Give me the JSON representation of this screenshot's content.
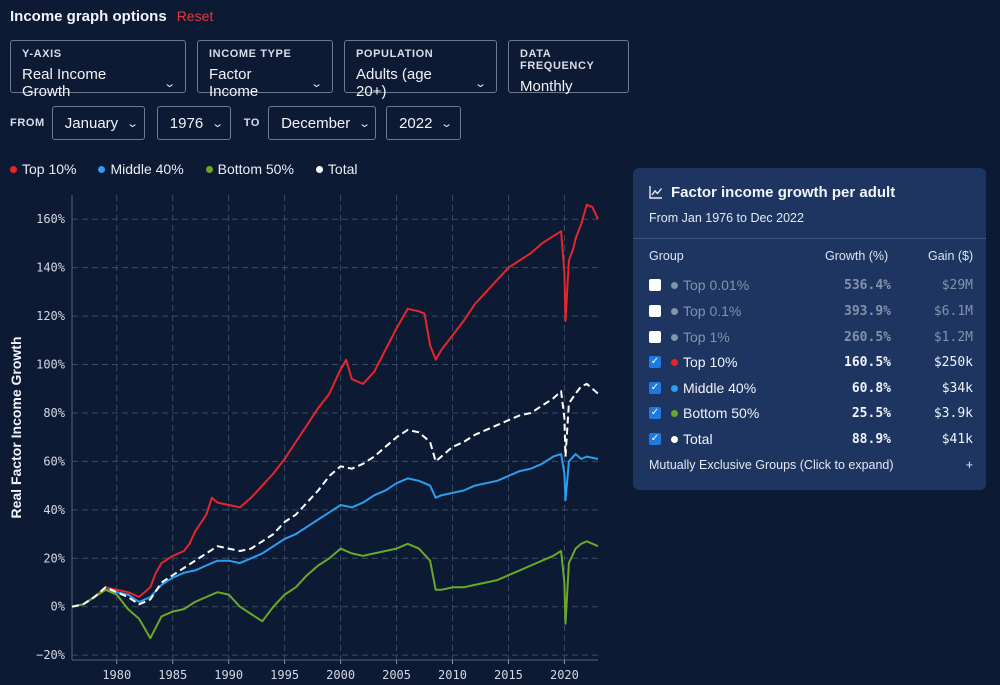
{
  "header": {
    "title": "Income graph options",
    "reset": "Reset"
  },
  "controls": [
    {
      "label": "Y-AXIS",
      "value": "Real Income Growth"
    },
    {
      "label": "INCOME TYPE",
      "value": "Factor Income"
    },
    {
      "label": "POPULATION",
      "value": "Adults (age 20+)"
    },
    {
      "label": "DATA FREQUENCY",
      "value": "Monthly"
    }
  ],
  "range": {
    "from_label": "FROM",
    "from_month": "January",
    "from_year": "1976",
    "to_label": "TO",
    "to_month": "December",
    "to_year": "2022"
  },
  "legend": [
    {
      "name": "Top 10%",
      "color": "#e5262b"
    },
    {
      "name": "Middle 40%",
      "color": "#2e9cf0"
    },
    {
      "name": "Bottom 50%",
      "color": "#6aa82a"
    },
    {
      "name": "Total",
      "color": "#ffffff"
    }
  ],
  "panel": {
    "title": "Factor income growth per adult",
    "subtitle": "From Jan 1976 to Dec 2022",
    "col_group": "Group",
    "col_growth": "Growth (%)",
    "col_gain": "Gain ($)",
    "rows": [
      {
        "name": "Top 0.01%",
        "growth": "536.4%",
        "gain": "$29M",
        "checked": false,
        "color": "#8492ab"
      },
      {
        "name": "Top 0.1%",
        "growth": "393.9%",
        "gain": "$6.1M",
        "checked": false,
        "color": "#8492ab"
      },
      {
        "name": "Top 1%",
        "growth": "260.5%",
        "gain": "$1.2M",
        "checked": false,
        "color": "#8492ab"
      },
      {
        "name": "Top 10%",
        "growth": "160.5%",
        "gain": "$250k",
        "checked": true,
        "color": "#e5262b"
      },
      {
        "name": "Middle 40%",
        "growth": "60.8%",
        "gain": "$34k",
        "checked": true,
        "color": "#2e9cf0"
      },
      {
        "name": "Bottom 50%",
        "growth": "25.5%",
        "gain": "$3.9k",
        "checked": true,
        "color": "#6aa82a"
      },
      {
        "name": "Total",
        "growth": "88.9%",
        "gain": "$41k",
        "checked": true,
        "color": "#ffffff"
      }
    ],
    "footer": "Mutually Exclusive Groups (Click to expand)",
    "footer_icon": "+"
  },
  "chart_data": {
    "type": "line",
    "ylabel": "Real Factor Income Growth",
    "xlim": [
      1976,
      2023
    ],
    "ylim": [
      -22,
      170
    ],
    "x_ticks": [
      1980,
      1985,
      1990,
      1995,
      2000,
      2005,
      2010,
      2015,
      2020
    ],
    "y_ticks": [
      -20,
      0,
      20,
      40,
      60,
      80,
      100,
      120,
      140,
      160
    ],
    "y_tick_labels": [
      "−20%",
      "0%",
      "20%",
      "40%",
      "60%",
      "80%",
      "100%",
      "120%",
      "140%",
      "160%"
    ],
    "grid": true,
    "series": [
      {
        "name": "Top 10%",
        "color": "#e5262b",
        "dashed": false,
        "points": [
          [
            1976,
            0
          ],
          [
            1977,
            1
          ],
          [
            1978,
            4
          ],
          [
            1979,
            8
          ],
          [
            1980,
            7
          ],
          [
            1981,
            6
          ],
          [
            1982,
            4
          ],
          [
            1983,
            8
          ],
          [
            1983.5,
            14
          ],
          [
            1984,
            18
          ],
          [
            1985,
            21
          ],
          [
            1986,
            23
          ],
          [
            1986.5,
            26
          ],
          [
            1987,
            31
          ],
          [
            1988,
            38
          ],
          [
            1988.5,
            45
          ],
          [
            1989,
            43
          ],
          [
            1990,
            42
          ],
          [
            1991,
            41
          ],
          [
            1992,
            45
          ],
          [
            1993,
            50
          ],
          [
            1994,
            55
          ],
          [
            1995,
            61
          ],
          [
            1996,
            68
          ],
          [
            1997,
            75
          ],
          [
            1998,
            82
          ],
          [
            1999,
            88
          ],
          [
            2000,
            98
          ],
          [
            2000.5,
            102
          ],
          [
            2001,
            94
          ],
          [
            2002,
            92
          ],
          [
            2003,
            97
          ],
          [
            2004,
            106
          ],
          [
            2005,
            115
          ],
          [
            2006,
            123
          ],
          [
            2007,
            122
          ],
          [
            2007.5,
            121
          ],
          [
            2008,
            108
          ],
          [
            2008.5,
            102
          ],
          [
            2009,
            106
          ],
          [
            2010,
            112
          ],
          [
            2011,
            118
          ],
          [
            2012,
            125
          ],
          [
            2013,
            130
          ],
          [
            2014,
            135
          ],
          [
            2015,
            140
          ],
          [
            2016,
            143
          ],
          [
            2017,
            146
          ],
          [
            2018,
            150
          ],
          [
            2019,
            153
          ],
          [
            2019.7,
            155
          ],
          [
            2020,
            138
          ],
          [
            2020.1,
            118
          ],
          [
            2020.4,
            143
          ],
          [
            2020.8,
            148
          ],
          [
            2021,
            152
          ],
          [
            2021.5,
            158
          ],
          [
            2022,
            166
          ],
          [
            2022.5,
            165
          ],
          [
            2023,
            160
          ]
        ]
      },
      {
        "name": "Middle 40%",
        "color": "#2e9cf0",
        "dashed": false,
        "points": [
          [
            1976,
            0
          ],
          [
            1977,
            1
          ],
          [
            1978,
            4
          ],
          [
            1979,
            7
          ],
          [
            1980,
            6
          ],
          [
            1981,
            5
          ],
          [
            1982,
            2
          ],
          [
            1983,
            4
          ],
          [
            1984,
            9
          ],
          [
            1985,
            12
          ],
          [
            1986,
            14
          ],
          [
            1987,
            15
          ],
          [
            1988,
            17
          ],
          [
            1989,
            19
          ],
          [
            1990,
            19
          ],
          [
            1991,
            18
          ],
          [
            1992,
            20
          ],
          [
            1993,
            22
          ],
          [
            1994,
            25
          ],
          [
            1995,
            28
          ],
          [
            1996,
            30
          ],
          [
            1997,
            33
          ],
          [
            1998,
            36
          ],
          [
            1999,
            39
          ],
          [
            2000,
            42
          ],
          [
            2001,
            41
          ],
          [
            2002,
            43
          ],
          [
            2003,
            46
          ],
          [
            2004,
            48
          ],
          [
            2005,
            51
          ],
          [
            2006,
            53
          ],
          [
            2007,
            52
          ],
          [
            2008,
            50
          ],
          [
            2008.5,
            45
          ],
          [
            2009,
            46
          ],
          [
            2010,
            47
          ],
          [
            2011,
            48
          ],
          [
            2012,
            50
          ],
          [
            2013,
            51
          ],
          [
            2014,
            52
          ],
          [
            2015,
            54
          ],
          [
            2016,
            56
          ],
          [
            2017,
            57
          ],
          [
            2018,
            59
          ],
          [
            2019,
            62
          ],
          [
            2019.7,
            63
          ],
          [
            2020,
            55
          ],
          [
            2020.1,
            44
          ],
          [
            2020.4,
            60
          ],
          [
            2021,
            63
          ],
          [
            2021.5,
            61
          ],
          [
            2022,
            62
          ],
          [
            2023,
            61
          ]
        ]
      },
      {
        "name": "Bottom 50%",
        "color": "#6aa82a",
        "dashed": false,
        "points": [
          [
            1976,
            0
          ],
          [
            1977,
            1
          ],
          [
            1978,
            4
          ],
          [
            1979,
            7
          ],
          [
            1980,
            5
          ],
          [
            1981,
            -1
          ],
          [
            1982,
            -5
          ],
          [
            1983,
            -13
          ],
          [
            1984,
            -4
          ],
          [
            1985,
            -2
          ],
          [
            1986,
            -1
          ],
          [
            1987,
            2
          ],
          [
            1988,
            4
          ],
          [
            1989,
            6
          ],
          [
            1990,
            5
          ],
          [
            1991,
            0
          ],
          [
            1992,
            -3
          ],
          [
            1993,
            -6
          ],
          [
            1994,
            0
          ],
          [
            1995,
            5
          ],
          [
            1996,
            8
          ],
          [
            1997,
            13
          ],
          [
            1998,
            17
          ],
          [
            1999,
            20
          ],
          [
            2000,
            24
          ],
          [
            2001,
            22
          ],
          [
            2002,
            21
          ],
          [
            2003,
            22
          ],
          [
            2004,
            23
          ],
          [
            2005,
            24
          ],
          [
            2006,
            26
          ],
          [
            2007,
            24
          ],
          [
            2008,
            19
          ],
          [
            2008.5,
            7
          ],
          [
            2009,
            7
          ],
          [
            2010,
            8
          ],
          [
            2011,
            8
          ],
          [
            2012,
            9
          ],
          [
            2013,
            10
          ],
          [
            2014,
            11
          ],
          [
            2015,
            13
          ],
          [
            2016,
            15
          ],
          [
            2017,
            17
          ],
          [
            2018,
            19
          ],
          [
            2019,
            21
          ],
          [
            2019.7,
            23
          ],
          [
            2020,
            10
          ],
          [
            2020.1,
            -7
          ],
          [
            2020.4,
            18
          ],
          [
            2021,
            24
          ],
          [
            2021.5,
            26
          ],
          [
            2022,
            27
          ],
          [
            2023,
            25
          ]
        ]
      },
      {
        "name": "Total",
        "color": "#ffffff",
        "dashed": true,
        "points": [
          [
            1976,
            0
          ],
          [
            1977,
            1
          ],
          [
            1978,
            4
          ],
          [
            1979,
            8
          ],
          [
            1980,
            6
          ],
          [
            1981,
            4
          ],
          [
            1982,
            1
          ],
          [
            1983,
            3
          ],
          [
            1984,
            10
          ],
          [
            1985,
            13
          ],
          [
            1986,
            16
          ],
          [
            1987,
            19
          ],
          [
            1988,
            22
          ],
          [
            1989,
            25
          ],
          [
            1990,
            24
          ],
          [
            1991,
            23
          ],
          [
            1992,
            24
          ],
          [
            1993,
            27
          ],
          [
            1994,
            30
          ],
          [
            1995,
            35
          ],
          [
            1996,
            38
          ],
          [
            1997,
            43
          ],
          [
            1998,
            48
          ],
          [
            1999,
            54
          ],
          [
            2000,
            58
          ],
          [
            2001,
            57
          ],
          [
            2002,
            59
          ],
          [
            2003,
            62
          ],
          [
            2004,
            66
          ],
          [
            2005,
            70
          ],
          [
            2006,
            73
          ],
          [
            2007,
            72
          ],
          [
            2008,
            68
          ],
          [
            2008.5,
            60
          ],
          [
            2009,
            62
          ],
          [
            2010,
            66
          ],
          [
            2011,
            68
          ],
          [
            2012,
            71
          ],
          [
            2013,
            73
          ],
          [
            2014,
            75
          ],
          [
            2015,
            77
          ],
          [
            2016,
            79
          ],
          [
            2017,
            80
          ],
          [
            2018,
            83
          ],
          [
            2019,
            86
          ],
          [
            2019.7,
            89
          ],
          [
            2020,
            78
          ],
          [
            2020.1,
            62
          ],
          [
            2020.4,
            84
          ],
          [
            2021,
            88
          ],
          [
            2021.5,
            91
          ],
          [
            2022,
            92
          ],
          [
            2023,
            88
          ]
        ]
      }
    ]
  }
}
